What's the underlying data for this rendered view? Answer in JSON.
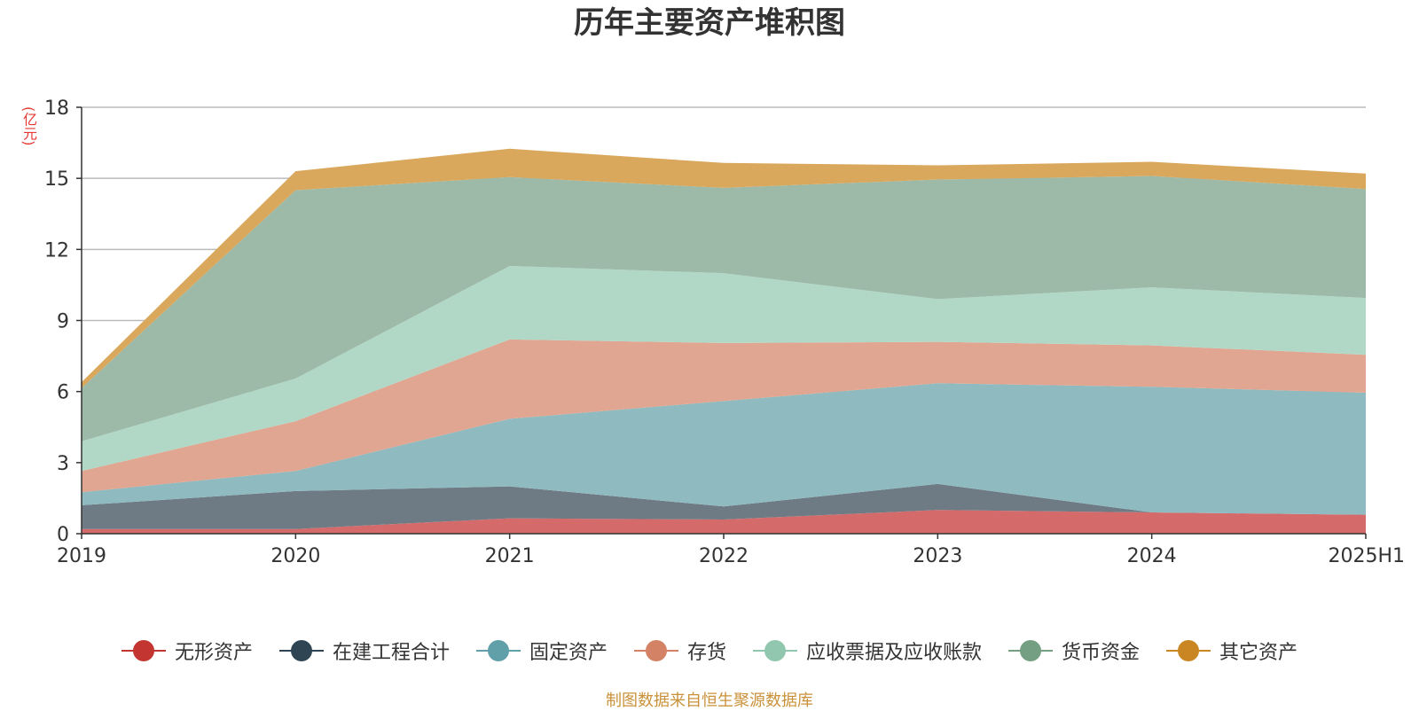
{
  "title": "历年主要资产堆积图",
  "unit_label": "(亿元)",
  "source_note": "制图数据来自恒生聚源数据库",
  "chart_data": {
    "type": "area",
    "stacked": true,
    "title": "历年主要资产堆积图",
    "ylabel": "(亿元)",
    "ylim": [
      0,
      18
    ],
    "yticks": [
      0,
      3,
      6,
      9,
      12,
      15,
      18
    ],
    "categories": [
      "2019",
      "2020",
      "2021",
      "2022",
      "2023",
      "2024",
      "2025H1"
    ],
    "grid": true,
    "legend_position": "bottom",
    "series": [
      {
        "name": "无形资产",
        "color": "#c23531",
        "fill": "#d46a6a",
        "values": [
          0.2,
          0.2,
          0.65,
          0.6,
          1.0,
          0.9,
          0.8
        ]
      },
      {
        "name": "在建工程合计",
        "color": "#2f4554",
        "fill": "#6e7b85",
        "values": [
          1.0,
          1.6,
          1.35,
          0.55,
          1.1,
          0.0,
          0.0
        ]
      },
      {
        "name": "固定资产",
        "color": "#61a0a8",
        "fill": "#8fbac0",
        "values": [
          0.55,
          0.85,
          2.85,
          4.45,
          4.25,
          5.3,
          5.15
        ]
      },
      {
        "name": "存货",
        "color": "#d48265",
        "fill": "#e0a691",
        "values": [
          0.9,
          2.1,
          3.35,
          2.45,
          1.75,
          1.75,
          1.6
        ]
      },
      {
        "name": "应收票据及应收账款",
        "color": "#91c7ae",
        "fill": "#b1d8c6",
        "values": [
          1.25,
          1.8,
          3.1,
          2.95,
          1.8,
          2.45,
          2.4
        ]
      },
      {
        "name": "货币资金",
        "color": "#749f83",
        "fill": "#9db9a7",
        "values": [
          2.25,
          7.95,
          3.75,
          3.6,
          5.05,
          4.7,
          4.6
        ]
      },
      {
        "name": "其它资产",
        "color": "#ca8622",
        "fill": "#d9a85c",
        "values": [
          0.25,
          0.8,
          1.2,
          1.05,
          0.6,
          0.6,
          0.65
        ]
      }
    ]
  }
}
